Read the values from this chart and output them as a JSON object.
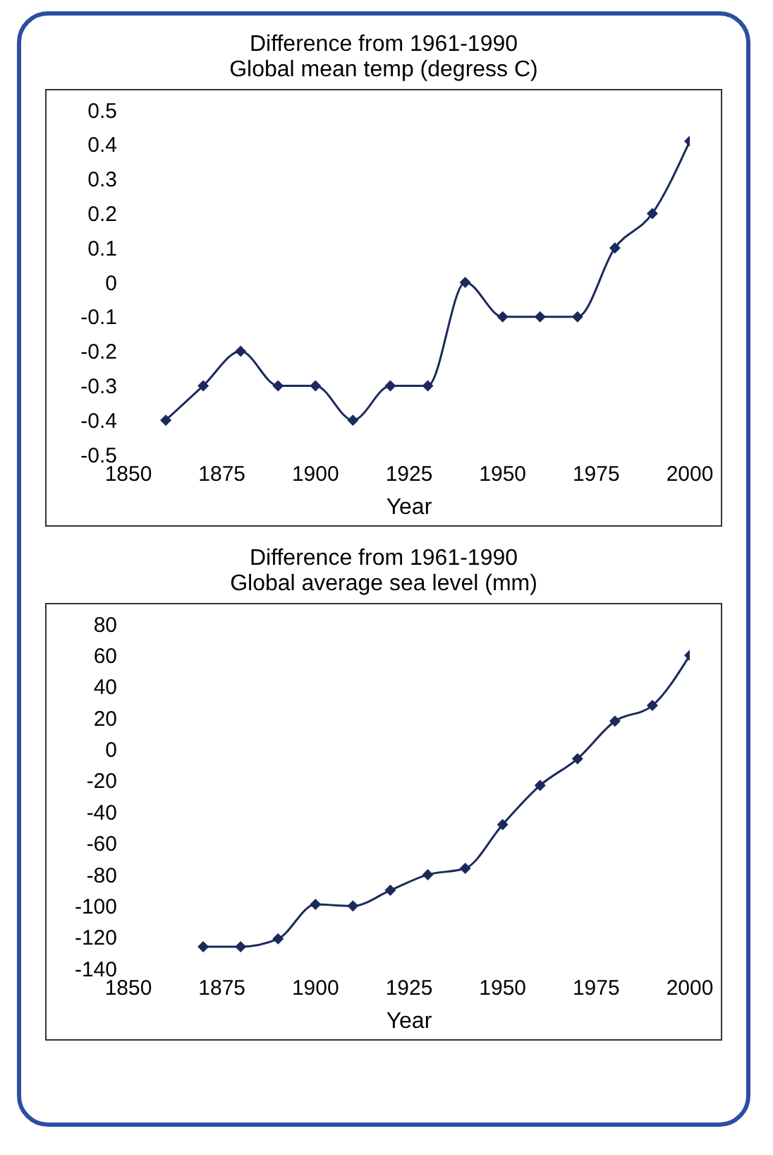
{
  "chart_data": [
    {
      "type": "line",
      "title": "Difference from 1961-1990",
      "subtitle": "Global mean temp (degress C)",
      "xlabel": "Year",
      "x": [
        1860,
        1870,
        1880,
        1890,
        1900,
        1910,
        1920,
        1930,
        1940,
        1950,
        1960,
        1970,
        1980,
        1990,
        2000
      ],
      "series": [
        {
          "color": "#1b2a5c",
          "values": [
            -0.4,
            -0.3,
            -0.2,
            -0.3,
            -0.3,
            -0.4,
            -0.3,
            -0.3,
            0.0,
            -0.1,
            -0.1,
            -0.1,
            0.1,
            0.2,
            0.41
          ]
        }
      ],
      "xlim": [
        1850,
        2000
      ],
      "xticks": [
        1850,
        1875,
        1900,
        1925,
        1950,
        1975,
        2000
      ],
      "ylim": [
        -0.5,
        0.5
      ],
      "yticks": [
        -0.5,
        -0.4,
        -0.3,
        -0.2,
        -0.1,
        0,
        0.1,
        0.2,
        0.3,
        0.4,
        0.5
      ],
      "grid": false,
      "legend": false,
      "marker": "diamond",
      "line_style": "solid"
    },
    {
      "type": "line",
      "title": "Difference from 1961-1990",
      "subtitle": "Global average sea level (mm)",
      "xlabel": "Year",
      "x": [
        1870,
        1880,
        1890,
        1900,
        1910,
        1920,
        1930,
        1940,
        1950,
        1960,
        1970,
        1980,
        1990,
        2000
      ],
      "series": [
        {
          "color": "#1b2a5c",
          "values": [
            -126,
            -126,
            -121,
            -99,
            -100,
            -90,
            -80,
            -76,
            -48,
            -23,
            -6,
            18,
            28,
            60
          ]
        }
      ],
      "xlim": [
        1850,
        2000
      ],
      "xticks": [
        1850,
        1875,
        1900,
        1925,
        1950,
        1975,
        2000
      ],
      "ylim": [
        -140,
        80
      ],
      "yticks": [
        -140,
        -120,
        -100,
        -80,
        -60,
        -40,
        -20,
        0,
        20,
        40,
        60,
        80
      ],
      "grid": false,
      "legend": false,
      "marker": "diamond",
      "line_style": "solid"
    }
  ]
}
